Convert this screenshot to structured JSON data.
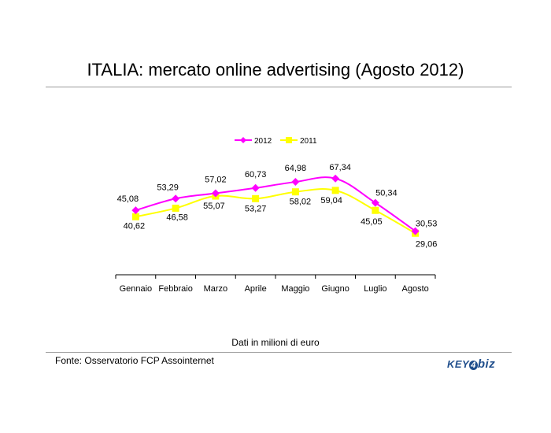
{
  "header": {
    "title": "ITALIA: mercato online advertising (Agosto 2012)"
  },
  "chart_data": {
    "type": "line",
    "categories": [
      "Gennaio",
      "Febbraio",
      "Marzo",
      "Aprile",
      "Maggio",
      "Giugno",
      "Luglio",
      "Agosto"
    ],
    "series": [
      {
        "name": "2012",
        "color": "#ff00ff",
        "marker": "diamond",
        "values": [
          45.08,
          53.29,
          57.02,
          60.73,
          64.98,
          67.34,
          50.34,
          30.53
        ],
        "labels": [
          "45,08",
          "53,29",
          "57,02",
          "60,73",
          "64,98",
          "67,34",
          "50,34",
          "30,53"
        ]
      },
      {
        "name": "2011",
        "color": "#ffff00",
        "marker": "square",
        "values": [
          40.62,
          46.58,
          55.07,
          53.27,
          58.02,
          59.04,
          45.05,
          29.06
        ],
        "labels": [
          "40,62",
          "46,58",
          "55,07",
          "53,27",
          "58,02",
          "59,04",
          "45,05",
          "29,06"
        ]
      }
    ],
    "legend_position": "top-center",
    "grid": false,
    "ylim": [
      0,
      90
    ]
  },
  "footer": {
    "note": "Dati in milioni di euro",
    "source": "Fonte: Osservatorio FCP Assointernet",
    "logo_text": "KEY4biz"
  }
}
